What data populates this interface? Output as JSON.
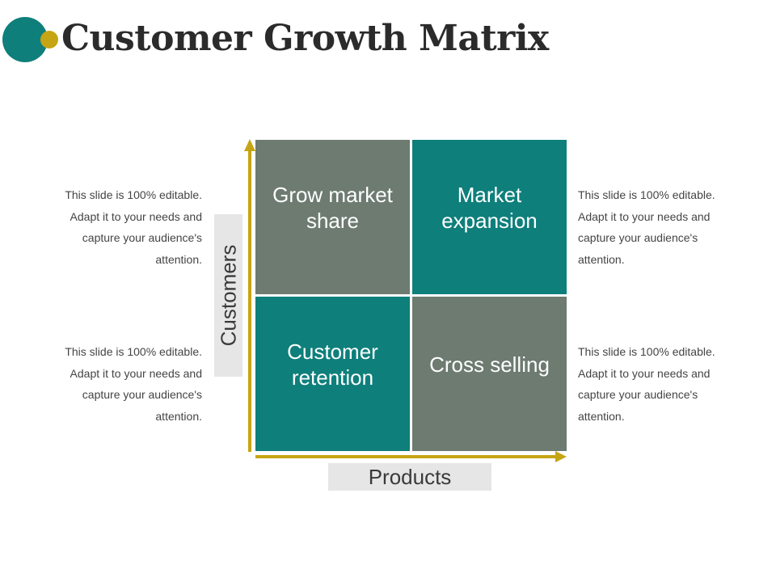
{
  "title": "Customer Growth Matrix",
  "colors": {
    "teal": "#0e7f7b",
    "gray": "#6d7b70",
    "gold": "#c6a514",
    "title": "#2b2b2b",
    "label_box": "#e6e6e6"
  },
  "quadrants": {
    "top_left": "Grow market share",
    "top_right": "Market expansion",
    "bottom_left": "Customer retention",
    "bottom_right": "Cross selling"
  },
  "axes": {
    "y_label": "Customers",
    "x_label": "Products"
  },
  "notes": {
    "top_left": "This slide is 100% editable. Adapt it to your needs and capture your audience's attention.",
    "bottom_left": "This slide is 100% editable. Adapt it to your needs and capture your audience's attention.",
    "top_right": "This slide is 100% editable. Adapt it to your needs and capture your audience's attention.",
    "bottom_right": "This slide is 100% editable. Adapt it to your needs and capture your audience's attention."
  }
}
